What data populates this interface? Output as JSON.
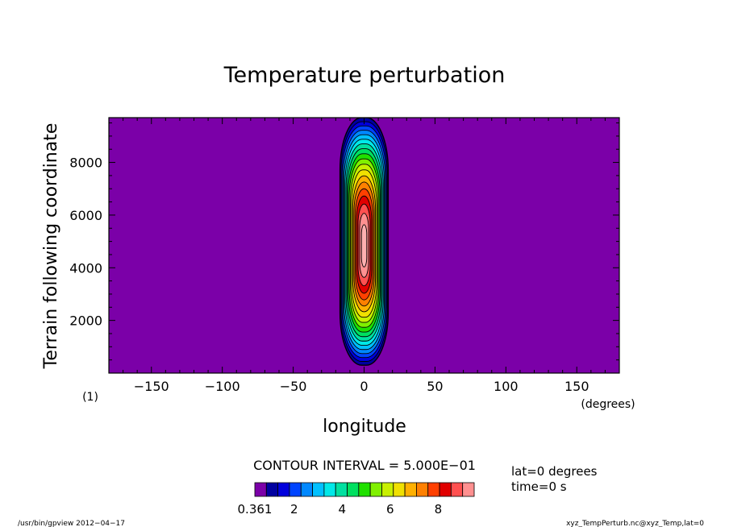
{
  "chart_data": {
    "type": "contour",
    "title": "Temperature perturbation",
    "xlabel": "longitude",
    "x_unit": "(degrees)",
    "ylabel": "Terrain following coordinate",
    "xlim": [
      -180,
      180
    ],
    "ylim": [
      0,
      9700
    ],
    "x_ticks": [
      -150,
      -100,
      -50,
      0,
      50,
      100,
      150
    ],
    "x_tick_labels": [
      "−150",
      "−100",
      "−50",
      "0",
      "50",
      "100",
      "150"
    ],
    "y_ticks": [
      2000,
      4000,
      6000,
      8000
    ],
    "y_tick_labels": [
      "2000",
      "4000",
      "6000",
      "8000"
    ],
    "grid": false,
    "field": {
      "background_value": 0,
      "peak_value": 9.3,
      "center_lon": 0,
      "center_height": 4800,
      "half_width_lon": 17,
      "height_range": [
        300,
        9700
      ]
    },
    "contour_interval_label": "CONTOUR INTERVAL = 5.000E−01",
    "colorbar": {
      "min_label": "0.361",
      "tick_labels": [
        "2",
        "4",
        "6",
        "8"
      ],
      "colors": [
        "#0000a0",
        "#0000dc",
        "#0044ff",
        "#0088ff",
        "#00c0ff",
        "#00e8e8",
        "#00e0a0",
        "#00e060",
        "#20e000",
        "#80f000",
        "#c8f000",
        "#f0e000",
        "#ffb000",
        "#ff8000",
        "#ff4000",
        "#e00000",
        "#ff5050",
        "#ff9090",
        "#ffb0b0"
      ],
      "background_color": "#7b00a8"
    },
    "panel_label": "(1)",
    "info": [
      "lat=0 degrees",
      "time=0 s"
    ],
    "footer_left": "/usr/bin/gpview  2012−04−17",
    "footer_right": "xyz_TempPerturb.nc@xyz_Temp,lat=0"
  }
}
